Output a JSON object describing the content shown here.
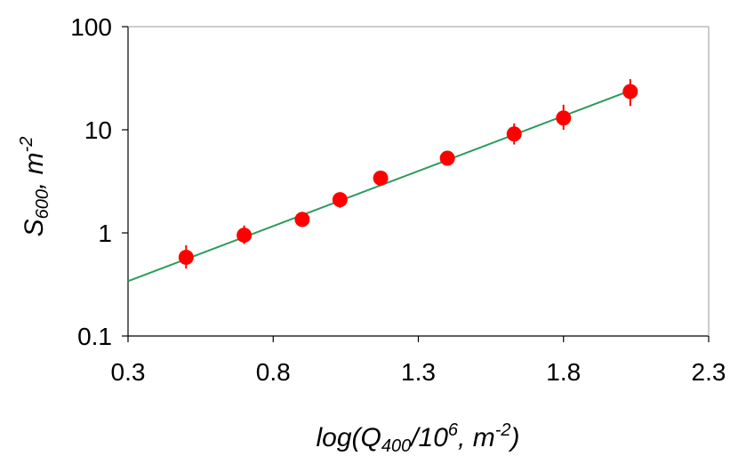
{
  "chart_data": {
    "type": "scatter",
    "title": "",
    "xlabel": {
      "prefix": "log(Q",
      "sub": "400",
      "mid": "/10",
      "sup1": "6",
      "mid2": ", m",
      "sup2": "-2",
      "suffix": ")"
    },
    "ylabel": {
      "prefix": "S",
      "sub": "600",
      "mid": ", m",
      "sup": "-2"
    },
    "xlim": [
      0.3,
      2.3
    ],
    "ylim": [
      0.1,
      100
    ],
    "yscale": "log",
    "x_ticks": [
      0.3,
      0.8,
      1.3,
      1.8,
      2.3
    ],
    "x_tick_labels": [
      "0.3",
      "0.8",
      "1.3",
      "1.8",
      "2.3"
    ],
    "y_ticks": [
      0.1,
      1,
      10,
      100
    ],
    "y_tick_labels": [
      "0.1",
      "1",
      "10",
      "100"
    ],
    "grid": false,
    "series": [
      {
        "kind": "points",
        "color": "#ff0000",
        "points": [
          {
            "x": 0.5,
            "y": 0.58,
            "err_lo": 0.45,
            "err_hi": 0.76
          },
          {
            "x": 0.7,
            "y": 0.95,
            "err_lo": 0.78,
            "err_hi": 1.18
          },
          {
            "x": 0.9,
            "y": 1.35,
            "err_lo": 1.15,
            "err_hi": 1.6
          },
          {
            "x": 1.03,
            "y": 2.1,
            "err_lo": 1.75,
            "err_hi": 2.45
          },
          {
            "x": 1.17,
            "y": 3.4,
            "err_lo": 3.0,
            "err_hi": 3.8
          },
          {
            "x": 1.4,
            "y": 5.3,
            "err_lo": 4.6,
            "err_hi": 6.1
          },
          {
            "x": 1.63,
            "y": 9.1,
            "err_lo": 7.2,
            "err_hi": 11.5
          },
          {
            "x": 1.8,
            "y": 13.0,
            "err_lo": 10.0,
            "err_hi": 17.5
          },
          {
            "x": 2.03,
            "y": 23.5,
            "err_lo": 17.0,
            "err_hi": 31.0
          }
        ]
      },
      {
        "kind": "fit-line",
        "color": "#2e9a5e",
        "x": [
          0.3,
          2.03
        ],
        "y": [
          0.34,
          24.0
        ]
      }
    ]
  }
}
